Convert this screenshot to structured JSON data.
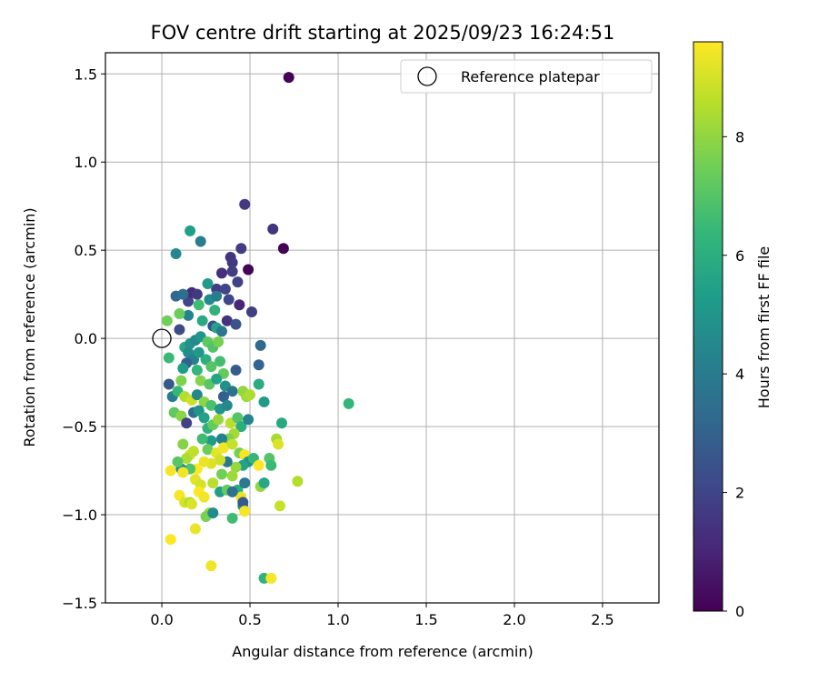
{
  "chart_data": {
    "type": "scatter",
    "title": "FOV centre drift starting at 2025/09/23 16:24:51",
    "xlabel": "Angular distance from reference (arcmin)",
    "ylabel": "Rotation from reference (arcmin)",
    "xlim": [
      -0.32,
      2.82
    ],
    "ylim": [
      -1.5,
      1.62
    ],
    "xticks": [
      0.0,
      0.5,
      1.0,
      1.5,
      2.0,
      2.5
    ],
    "xtick_labels": [
      "0.0",
      "0.5",
      "1.0",
      "1.5",
      "2.0",
      "2.5"
    ],
    "yticks": [
      -1.5,
      -1.0,
      -0.5,
      0.0,
      0.5,
      1.0,
      1.5
    ],
    "ytick_labels": [
      "−1.5",
      "−1.0",
      "−0.5",
      "0.0",
      "0.5",
      "1.0",
      "1.5"
    ],
    "grid": true,
    "legend": {
      "position": "top-right",
      "entries": [
        "Reference platepar"
      ]
    },
    "reference_point": {
      "x": 0.0,
      "y": 0.0,
      "label": "Reference platepar"
    },
    "colorbar": {
      "label": "Hours from first FF file",
      "range": [
        0,
        9.6
      ],
      "ticks": [
        0,
        2,
        4,
        6,
        8
      ],
      "tick_labels": [
        "0",
        "2",
        "4",
        "6",
        "8"
      ],
      "colormap": "viridis"
    },
    "colormap_stops": [
      "#440154",
      "#482878",
      "#3e4989",
      "#31688e",
      "#26828e",
      "#1f9e89",
      "#35b779",
      "#6ece58",
      "#b5de2b",
      "#fde725"
    ],
    "points": [
      [
        0.72,
        1.48,
        0.05
      ],
      [
        0.69,
        0.51,
        0.1
      ],
      [
        0.49,
        0.39,
        0.1
      ],
      [
        0.47,
        0.76,
        1.6
      ],
      [
        0.63,
        0.62,
        1.5
      ],
      [
        0.45,
        0.51,
        1.7
      ],
      [
        0.39,
        0.46,
        1.5
      ],
      [
        0.4,
        0.43,
        1.6
      ],
      [
        0.4,
        0.38,
        1.8
      ],
      [
        0.43,
        0.32,
        1.9
      ],
      [
        0.34,
        0.37,
        1.3
      ],
      [
        0.31,
        0.28,
        1.7
      ],
      [
        0.36,
        0.28,
        2.0
      ],
      [
        0.38,
        0.22,
        2.1
      ],
      [
        0.44,
        0.19,
        1.0
      ],
      [
        0.51,
        0.15,
        1.8
      ],
      [
        0.37,
        0.1,
        1.4
      ],
      [
        0.42,
        0.08,
        2.5
      ],
      [
        0.29,
        0.07,
        2.3
      ],
      [
        0.56,
        -0.04,
        3.3
      ],
      [
        0.55,
        -0.15,
        3.1
      ],
      [
        0.42,
        -0.18,
        2.8
      ],
      [
        0.1,
        0.05,
        2.2
      ],
      [
        0.15,
        0.21,
        2.0
      ],
      [
        0.17,
        0.26,
        1.2
      ],
      [
        0.2,
        0.25,
        1.6
      ],
      [
        0.08,
        0.24,
        3.2
      ],
      [
        0.12,
        0.25,
        3.5
      ],
      [
        0.22,
        0.55,
        4.1
      ],
      [
        0.08,
        0.48,
        4.4
      ],
      [
        0.16,
        0.61,
        5.4
      ],
      [
        0.26,
        0.31,
        5.2
      ],
      [
        0.27,
        0.22,
        4.6
      ],
      [
        0.31,
        0.24,
        4.0
      ],
      [
        0.15,
        0.13,
        4.3
      ],
      [
        0.23,
        0.1,
        5.8
      ],
      [
        0.3,
        0.16,
        6.2
      ],
      [
        0.21,
        0.19,
        6.6
      ],
      [
        0.1,
        0.14,
        7.4
      ],
      [
        0.03,
        0.1,
        7.5
      ],
      [
        0.04,
        -0.11,
        6.5
      ],
      [
        0.13,
        -0.05,
        5.7
      ],
      [
        0.16,
        -0.03,
        4.9
      ],
      [
        0.19,
        -0.01,
        4.5
      ],
      [
        0.22,
        0.01,
        5.0
      ],
      [
        0.31,
        0.06,
        5.5
      ],
      [
        0.34,
        0.04,
        3.8
      ],
      [
        0.26,
        -0.02,
        7.2
      ],
      [
        0.29,
        -0.05,
        6.9
      ],
      [
        0.32,
        -0.02,
        7.6
      ],
      [
        0.15,
        -0.08,
        4.7
      ],
      [
        0.18,
        -0.12,
        4.2
      ],
      [
        0.21,
        -0.08,
        5.1
      ],
      [
        0.25,
        -0.12,
        6.0
      ],
      [
        0.28,
        -0.16,
        7.0
      ],
      [
        0.33,
        -0.13,
        6.7
      ],
      [
        0.35,
        -0.2,
        7.3
      ],
      [
        0.14,
        -0.14,
        3.0
      ],
      [
        0.12,
        -0.17,
        5.3
      ],
      [
        0.2,
        -0.18,
        6.3
      ],
      [
        0.22,
        -0.24,
        7.8
      ],
      [
        0.27,
        -0.26,
        7.1
      ],
      [
        0.31,
        -0.23,
        5.6
      ],
      [
        0.36,
        -0.27,
        4.8
      ],
      [
        0.4,
        -0.3,
        3.6
      ],
      [
        0.46,
        -0.3,
        8.0
      ],
      [
        0.48,
        -0.33,
        8.2
      ],
      [
        0.5,
        -0.32,
        8.4
      ],
      [
        0.55,
        -0.26,
        5.9
      ],
      [
        0.58,
        -0.36,
        5.2
      ],
      [
        0.04,
        -0.26,
        2.6
      ],
      [
        0.06,
        -0.33,
        4.1
      ],
      [
        0.09,
        -0.3,
        6.4
      ],
      [
        0.11,
        -0.24,
        7.7
      ],
      [
        0.13,
        -0.33,
        8.5
      ],
      [
        0.17,
        -0.35,
        8.9
      ],
      [
        0.2,
        -0.32,
        4.4
      ],
      [
        0.24,
        -0.36,
        7.9
      ],
      [
        0.28,
        -0.38,
        6.8
      ],
      [
        0.33,
        -0.4,
        5.0
      ],
      [
        0.35,
        -0.33,
        2.9
      ],
      [
        0.37,
        -0.38,
        4.5
      ],
      [
        0.07,
        -0.42,
        7.2
      ],
      [
        0.11,
        -0.44,
        7.9
      ],
      [
        0.14,
        -0.48,
        1.9
      ],
      [
        0.18,
        -0.42,
        3.4
      ],
      [
        0.21,
        -0.41,
        4.9
      ],
      [
        0.24,
        -0.45,
        5.5
      ],
      [
        0.26,
        -0.51,
        6.1
      ],
      [
        0.29,
        -0.49,
        7.3
      ],
      [
        0.32,
        -0.46,
        8.1
      ],
      [
        0.39,
        -0.48,
        8.6
      ],
      [
        0.43,
        -0.45,
        7.0
      ],
      [
        0.45,
        -0.5,
        6.0
      ],
      [
        0.49,
        -0.46,
        4.3
      ],
      [
        0.41,
        -0.54,
        8.3
      ],
      [
        0.38,
        -0.57,
        7.7
      ],
      [
        0.34,
        -0.57,
        4.2
      ],
      [
        0.28,
        -0.58,
        5.2
      ],
      [
        0.23,
        -0.57,
        6.6
      ],
      [
        0.26,
        -0.63,
        7.4
      ],
      [
        0.31,
        -0.65,
        9.2
      ],
      [
        0.35,
        -0.62,
        9.4
      ],
      [
        0.4,
        -0.6,
        8.8
      ],
      [
        0.44,
        -0.65,
        7.6
      ],
      [
        0.47,
        -0.66,
        9.5
      ],
      [
        0.49,
        -0.7,
        4.9
      ],
      [
        0.52,
        -0.68,
        6.3
      ],
      [
        0.46,
        -0.72,
        5.5
      ],
      [
        0.42,
        -0.73,
        8.1
      ],
      [
        0.37,
        -0.7,
        3.8
      ],
      [
        0.33,
        -0.69,
        8.9
      ],
      [
        0.28,
        -0.71,
        9.1
      ],
      [
        0.24,
        -0.7,
        9.3
      ],
      [
        0.2,
        -0.74,
        9.6
      ],
      [
        0.16,
        -0.66,
        9.0
      ],
      [
        0.12,
        -0.6,
        7.8
      ],
      [
        0.14,
        -0.68,
        8.4
      ],
      [
        0.18,
        -0.64,
        8.7
      ],
      [
        0.16,
        -0.74,
        6.9
      ],
      [
        0.11,
        -0.74,
        4.6
      ],
      [
        0.09,
        -0.7,
        7.1
      ],
      [
        0.05,
        -0.75,
        9.5
      ],
      [
        0.12,
        -0.76,
        9.4
      ],
      [
        0.19,
        -0.8,
        9.2
      ],
      [
        0.22,
        -0.83,
        9.0
      ],
      [
        0.29,
        -0.82,
        8.6
      ],
      [
        0.34,
        -0.77,
        7.5
      ],
      [
        0.4,
        -0.78,
        8.2
      ],
      [
        0.43,
        -0.86,
        6.0
      ],
      [
        0.45,
        -0.9,
        9.3
      ],
      [
        0.47,
        -0.82,
        3.9
      ],
      [
        0.55,
        -0.72,
        9.6
      ],
      [
        0.61,
        -0.68,
        7.0
      ],
      [
        0.62,
        -0.72,
        6.5
      ],
      [
        0.56,
        -0.84,
        8.0
      ],
      [
        0.58,
        -0.82,
        5.7
      ],
      [
        0.65,
        -0.57,
        8.3
      ],
      [
        0.66,
        -0.6,
        9.1
      ],
      [
        0.68,
        -0.48,
        5.8
      ],
      [
        0.77,
        -0.81,
        8.5
      ],
      [
        0.67,
        -0.95,
        8.8
      ],
      [
        1.06,
        -0.37,
        6.3
      ],
      [
        0.1,
        -0.89,
        9.5
      ],
      [
        0.13,
        -0.93,
        9.0
      ],
      [
        0.16,
        -0.93,
        8.4
      ],
      [
        0.21,
        -0.87,
        9.6
      ],
      [
        0.24,
        -0.9,
        9.4
      ],
      [
        0.27,
        -0.99,
        8.1
      ],
      [
        0.25,
        -1.01,
        7.6
      ],
      [
        0.29,
        -0.99,
        4.7
      ],
      [
        0.33,
        -0.87,
        5.4
      ],
      [
        0.37,
        -0.86,
        7.3
      ],
      [
        0.4,
        -0.87,
        3.6
      ],
      [
        0.4,
        -1.02,
        6.6
      ],
      [
        0.46,
        -0.95,
        5.1
      ],
      [
        0.46,
        -0.93,
        2.7
      ],
      [
        0.47,
        -0.98,
        9.5
      ],
      [
        0.19,
        -1.08,
        9.3
      ],
      [
        0.05,
        -1.14,
        9.6
      ],
      [
        0.28,
        -1.29,
        9.4
      ],
      [
        0.58,
        -1.36,
        6.2
      ],
      [
        0.62,
        -1.36,
        9.5
      ],
      [
        0.17,
        -0.94,
        9.1
      ]
    ]
  }
}
